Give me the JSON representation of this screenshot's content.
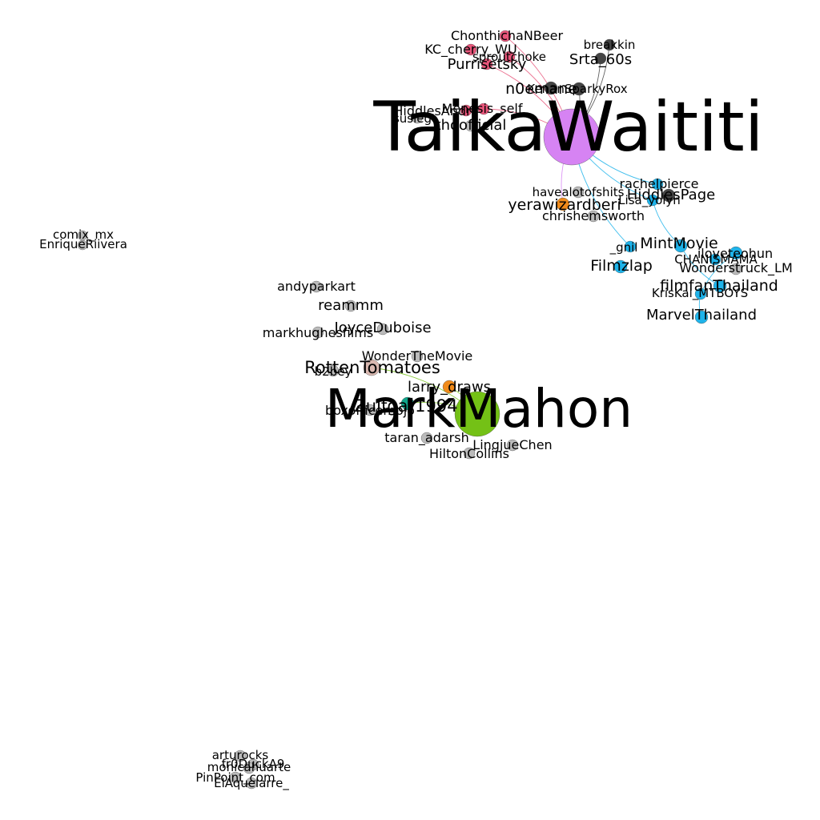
{
  "graph": {
    "nodes": [
      {
        "id": "TaikaWaititi",
        "label": "TaikaWaititi",
        "color": "#d683f3"
      },
      {
        "id": "MarkMahon",
        "label": "MarkMahon",
        "color": "#74c116"
      },
      {
        "id": "ChonthichaNBeer",
        "label": "ChonthichaNBeer",
        "color": "#e8557a"
      },
      {
        "id": "KC_cherry_WU",
        "label": "KC_cherry_WU",
        "color": "#e8557a"
      },
      {
        "id": "sproutchoke",
        "label": "sproutchoke",
        "color": "#e8557a"
      },
      {
        "id": "Purrisetsky",
        "label": "Purrisetsky",
        "color": "#e8557a"
      },
      {
        "id": "breakkin",
        "label": "breakkin",
        "color": "#444444"
      },
      {
        "id": "Srta_60s",
        "label": "Srta_60s",
        "color": "#444444"
      },
      {
        "id": "n0emane",
        "label": "n0emane",
        "color": "#444444"
      },
      {
        "id": "KenanSparkyRox",
        "label": "KenanSparkyRox",
        "color": "#444444"
      },
      {
        "id": "Menesis_self",
        "label": "Menesis_self",
        "color": "#e8557a"
      },
      {
        "id": "HiddlesAndr",
        "label": "HiddlesAndr",
        "color": "#e8557a"
      },
      {
        "id": "susieg",
        "label": "susieg",
        "color": "#bbbbbb"
      },
      {
        "id": "thoofficial",
        "label": "thoofficial",
        "color": "#bbbbbb"
      },
      {
        "id": "rachelpierce",
        "label": "rachelpierce",
        "color": "#1eb3ea"
      },
      {
        "id": "HiddlesPage",
        "label": "HiddlesPage",
        "color": "#444444"
      },
      {
        "id": "Lisa_yolyn",
        "label": "Lisa_yolyn",
        "color": "#1eb3ea"
      },
      {
        "id": "havealotofshits",
        "label": "havealotofshits",
        "color": "#bbbbbb"
      },
      {
        "id": "yerawizardberi",
        "label": "yerawizardberi",
        "color": "#f08a1a"
      },
      {
        "id": "chrishemsworth",
        "label": "chrishemsworth",
        "color": "#bbbbbb"
      },
      {
        "id": "MintMovie",
        "label": "MintMovie",
        "color": "#1eb3ea"
      },
      {
        "id": "_gnil",
        "label": "_gnil",
        "color": "#1eb3ea"
      },
      {
        "id": "iloveteohun",
        "label": "iloveteohun",
        "color": "#1eb3ea"
      },
      {
        "id": "Filmzlap",
        "label": "Filmzlap",
        "color": "#1eb3ea"
      },
      {
        "id": "CHANISMAMA",
        "label": "CHANISMAMA",
        "color": "#1eb3ea"
      },
      {
        "id": "Wonderstruck_LM",
        "label": "Wonderstruck_LM",
        "color": "#bbbbbb"
      },
      {
        "id": "filmfanThailand",
        "label": "filmfanThailand",
        "color": "#1eb3ea"
      },
      {
        "id": "KrisKai_MTBOYS",
        "label": "KrisKai_MTBOYS",
        "color": "#1eb3ea"
      },
      {
        "id": "MarvelThailand",
        "label": "MarvelThailand",
        "color": "#1eb3ea"
      },
      {
        "id": "comix_mx",
        "label": "comix_mx",
        "color": "#bbbbbb"
      },
      {
        "id": "EnriqueRiivera",
        "label": "EnriqueRiivera",
        "color": "#bbbbbb"
      },
      {
        "id": "andyparkart",
        "label": "andyparkart",
        "color": "#bbbbbb"
      },
      {
        "id": "reammm",
        "label": "reammm",
        "color": "#bbbbbb"
      },
      {
        "id": "JoyceDuboise",
        "label": "JoyceDuboise",
        "color": "#bbbbbb"
      },
      {
        "id": "markhughesfilms",
        "label": "markhughesfilms",
        "color": "#bbbbbb"
      },
      {
        "id": "WonderTheMovie",
        "label": "WonderTheMovie",
        "color": "#bbbbbb"
      },
      {
        "id": "RottenTomatoes",
        "label": "RottenTomatoes",
        "color": "#d9b8b0"
      },
      {
        "id": "b2bey",
        "label": "b2bey",
        "color": "#bbbbbb"
      },
      {
        "id": "larry_draws",
        "label": "larry_draws",
        "color": "#f08a1a"
      },
      {
        "id": "Zulfgar1994",
        "label": "Zulfgar1994",
        "color": "#10a58a"
      },
      {
        "id": "boxofficemojo",
        "label": "boxofficemojo",
        "color": "#bbbbbb"
      },
      {
        "id": "taran_adarsh",
        "label": "taran_adarsh",
        "color": "#bbbbbb"
      },
      {
        "id": "LingjueChen",
        "label": "LingjueChen",
        "color": "#bbbbbb"
      },
      {
        "id": "HiltonCollins",
        "label": "HiltonCollins",
        "color": "#bbbbbb"
      },
      {
        "id": "arturocks",
        "label": "arturocks",
        "color": "#bbbbbb"
      },
      {
        "id": "fr0DuckA9",
        "label": "fr0DuckA9",
        "color": "#bbbbbb"
      },
      {
        "id": "monicahuarte",
        "label": "monicahuarte",
        "color": "#bbbbbb"
      },
      {
        "id": "PinPoint_com",
        "label": "PinPoint_com",
        "color": "#bbbbbb"
      },
      {
        "id": "ElAquelarre_",
        "label": "ElAquelarre_",
        "color": "#bbbbbb"
      }
    ],
    "edges": [
      {
        "source": "TaikaWaititi",
        "target": "ChonthichaNBeer",
        "color": "#e8557a"
      },
      {
        "source": "TaikaWaititi",
        "target": "Purrisetsky",
        "color": "#e8557a"
      },
      {
        "source": "TaikaWaititi",
        "target": "Menesis_self",
        "color": "#e8557a"
      },
      {
        "source": "TaikaWaititi",
        "target": "sproutchoke",
        "color": "#e8557a"
      },
      {
        "source": "TaikaWaititi",
        "target": "breakkin",
        "color": "#444444"
      },
      {
        "source": "TaikaWaititi",
        "target": "Srta_60s",
        "color": "#444444"
      },
      {
        "source": "TaikaWaititi",
        "target": "KenanSparkyRox",
        "color": "#444444"
      },
      {
        "source": "TaikaWaititi",
        "target": "rachelpierce",
        "color": "#1eb3ea"
      },
      {
        "source": "TaikaWaititi",
        "target": "Lisa_yolyn",
        "color": "#1eb3ea"
      },
      {
        "source": "TaikaWaititi",
        "target": "_gnil",
        "color": "#1eb3ea"
      },
      {
        "source": "TaikaWaititi",
        "target": "yerawizardberi",
        "color": "#d683f3"
      },
      {
        "source": "Lisa_yolyn",
        "target": "MintMovie",
        "color": "#1eb3ea"
      },
      {
        "source": "MintMovie",
        "target": "filmfanThailand",
        "color": "#1eb3ea"
      },
      {
        "source": "iloveteohun",
        "target": "KrisKai_MTBOYS",
        "color": "#1eb3ea"
      },
      {
        "source": "KrisKai_MTBOYS",
        "target": "MarvelThailand",
        "color": "#1eb3ea"
      },
      {
        "source": "MarkMahon",
        "target": "larry_draws",
        "color": "#74c116"
      },
      {
        "source": "MarkMahon",
        "target": "Zulfgar1994",
        "color": "#74c116"
      },
      {
        "source": "MarkMahon",
        "target": "RottenTomatoes",
        "color": "#74c116"
      }
    ]
  }
}
